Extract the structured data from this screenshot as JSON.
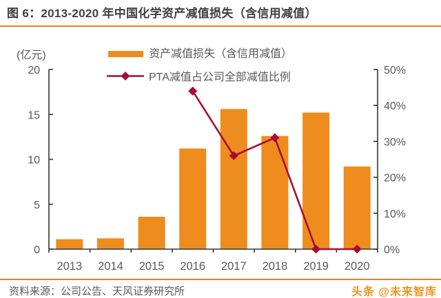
{
  "title": "图 6：2013-2020 年中国化学资产减值损失（含信用减值）",
  "footer": {
    "source": "资料来源：公司公告、天风证券研究所",
    "watermark": "头条 @未来智库"
  },
  "colors": {
    "bar": "#EE8C1E",
    "line": "#A60D35",
    "accent_rule": "#E8821E",
    "title_text": "#3F3F3F",
    "axis_text": "#595959",
    "axis_line": "#333333"
  },
  "chart_data": {
    "type": "bar+line",
    "title": "图 6：2013-2020 年中国化学资产减值损失（含信用减值）",
    "unit_label": "(亿元)",
    "categories": [
      "2013",
      "2014",
      "2015",
      "2016",
      "2017",
      "2018",
      "2019",
      "2020"
    ],
    "series": [
      {
        "name": "资产减值损失（含信用减值）",
        "type": "bar",
        "axis": "left",
        "values": [
          1.1,
          1.2,
          3.6,
          11.2,
          15.6,
          12.6,
          15.2,
          9.2
        ]
      },
      {
        "name": "PTA减值占公司全部减值比例",
        "type": "line",
        "axis": "right",
        "values": [
          null,
          null,
          null,
          44,
          26,
          31,
          0,
          0
        ]
      }
    ],
    "left_axis": {
      "ticks": [
        0,
        5,
        10,
        15,
        20
      ],
      "range": [
        0,
        20
      ]
    },
    "right_axis": {
      "tick_labels": [
        "0%",
        "10%",
        "20%",
        "30%",
        "40%",
        "50%"
      ],
      "tick_values": [
        0,
        10,
        20,
        30,
        40,
        50
      ],
      "range": [
        0,
        50
      ]
    },
    "legend_position": "top",
    "grid": false
  }
}
